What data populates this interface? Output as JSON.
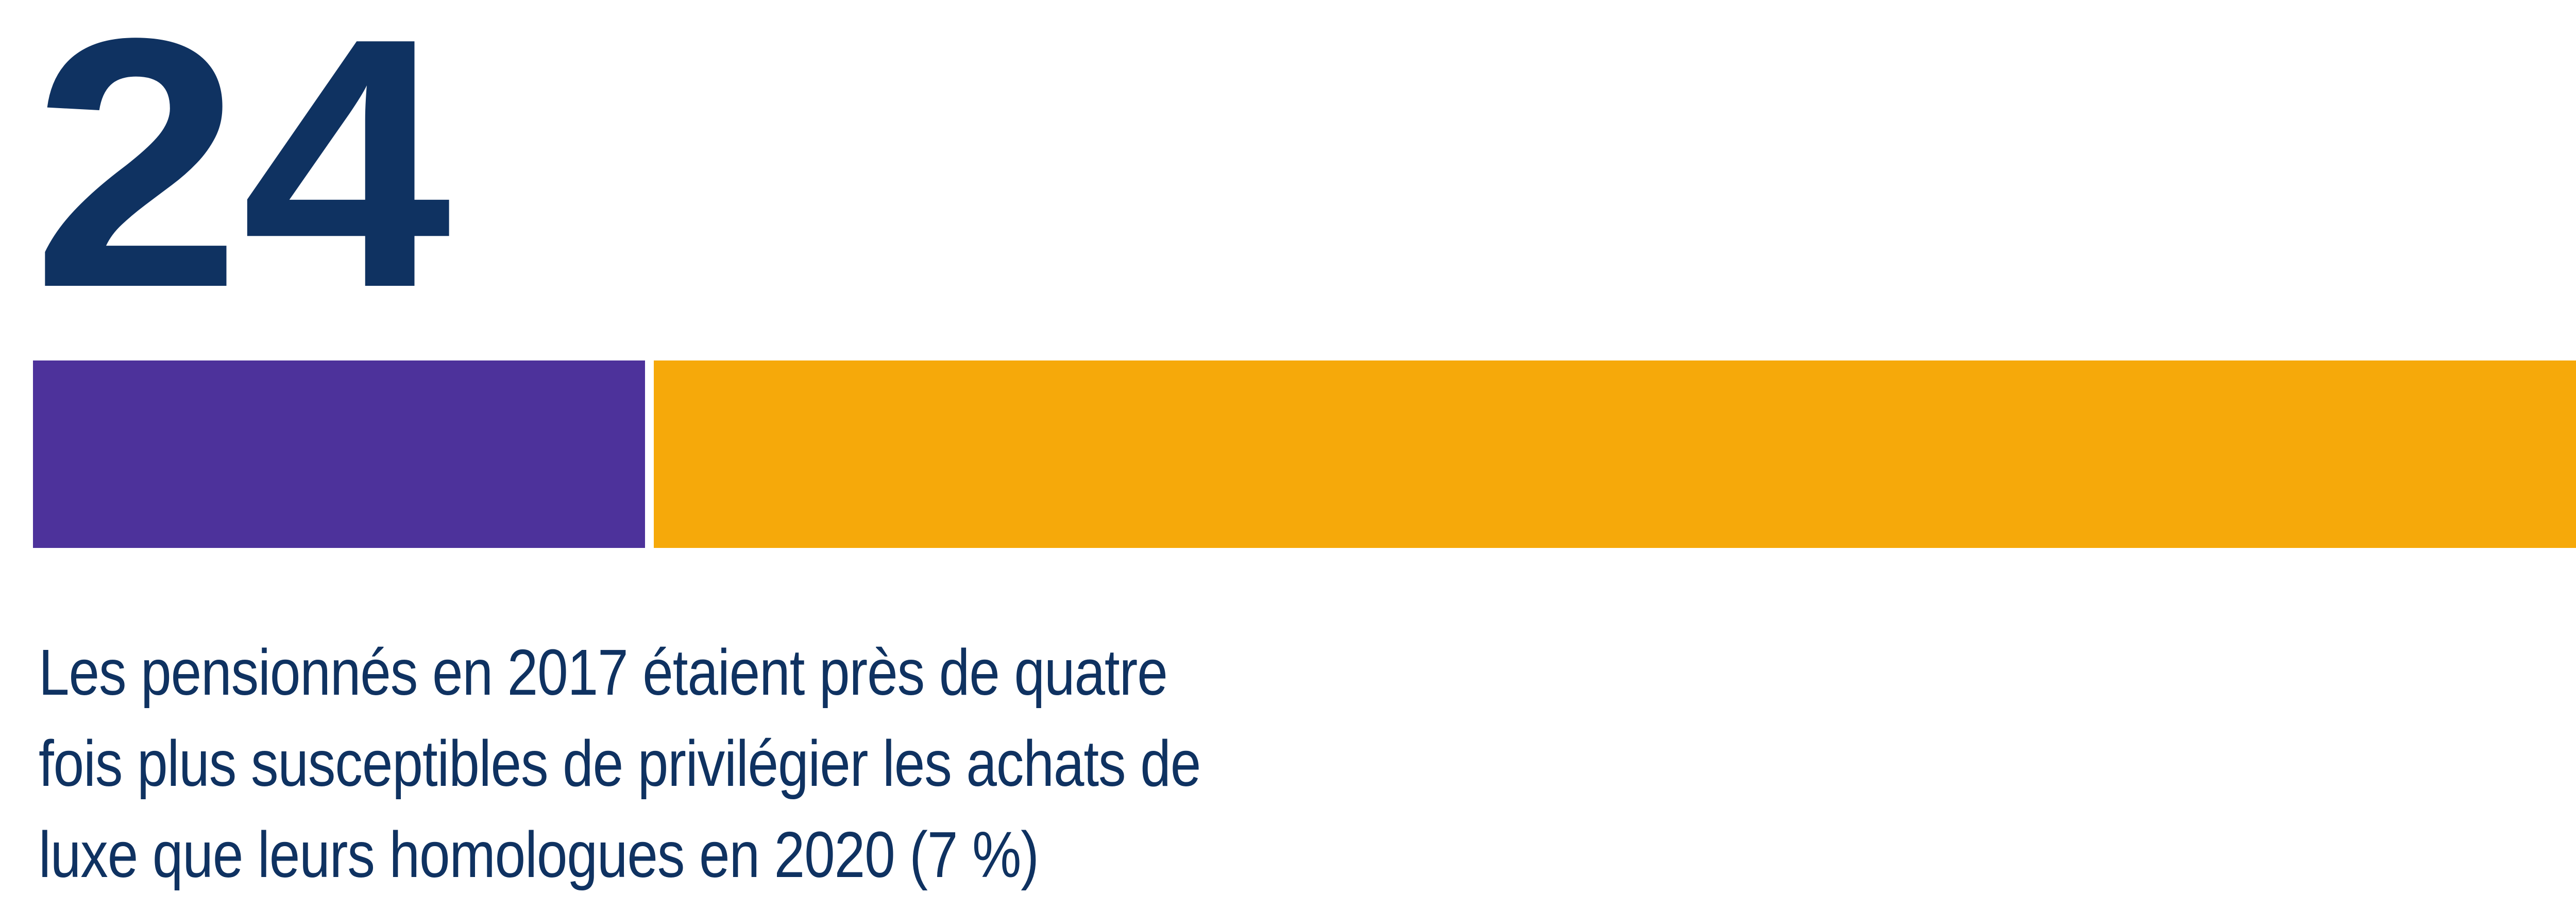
{
  "stat": {
    "number": "24",
    "caption_lines": [
      "Les pensionnés en 2017 étaient près de quatre",
      "fois plus susceptibles de privilégier les achats de",
      "luxe que leurs homologues en 2020 (7 %)"
    ]
  },
  "colors": {
    "navy_text": "#0F3261",
    "purple_segment": "#4D329B",
    "orange_segment": "#F6A90A",
    "background": "#FFFFFF"
  },
  "chart_data": {
    "type": "bar",
    "orientation": "horizontal",
    "stacked": true,
    "title": "24",
    "unit": "%",
    "segments": [
      {
        "value": 24,
        "color": "#4D329B"
      },
      {
        "value": 76,
        "color": "#F6A90A"
      }
    ],
    "highlight_value": 24,
    "comparison_value_in_caption": 7,
    "xlabel": "",
    "ylabel": "",
    "legend": "none",
    "axes_visible": false,
    "grid": false
  }
}
